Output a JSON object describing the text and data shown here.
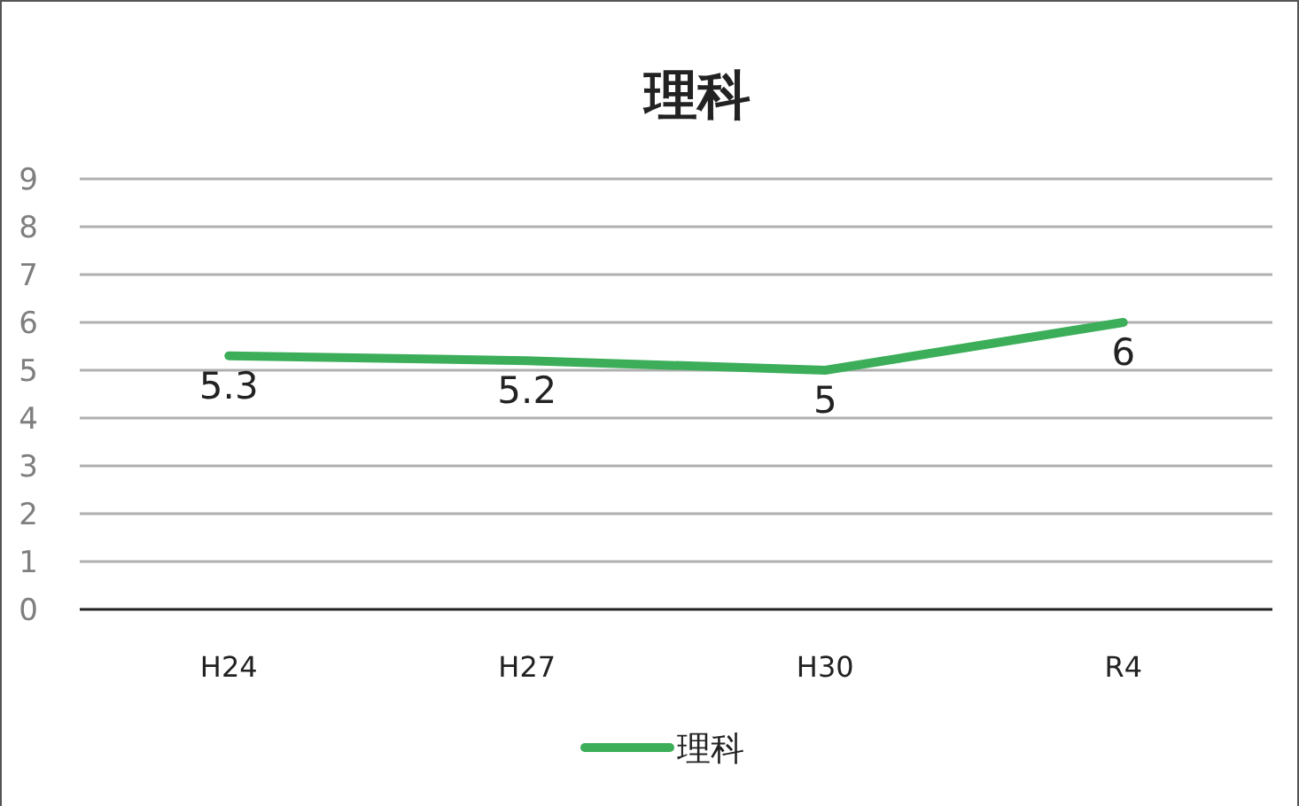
{
  "chart_data": {
    "type": "line",
    "title": "理科",
    "categories": [
      "H24",
      "H27",
      "H30",
      "R4"
    ],
    "series": [
      {
        "name": "理科",
        "color": "#3cae5a",
        "values": [
          5.3,
          5.2,
          5,
          6
        ]
      }
    ],
    "ylim": [
      0,
      9
    ],
    "yticks": [
      0,
      1,
      2,
      3,
      4,
      5,
      6,
      7,
      8,
      9
    ],
    "grid": "y",
    "legend": "bottom",
    "data_labels": true,
    "marker": "none",
    "line_style": "solid"
  }
}
